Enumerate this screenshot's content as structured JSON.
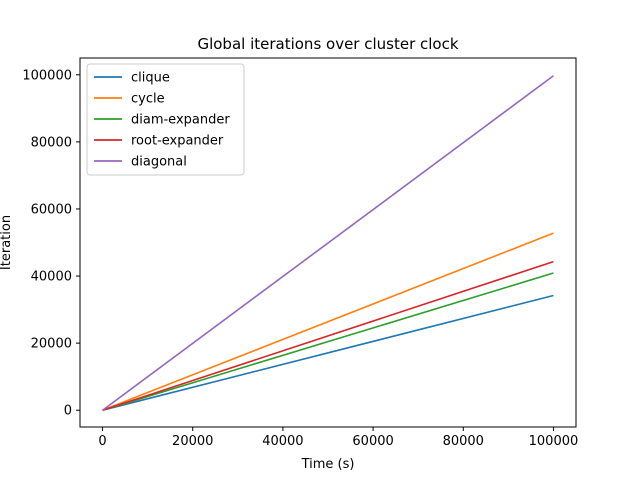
{
  "chart_data": {
    "type": "line",
    "title": "Global iterations over cluster clock",
    "xlabel": "Time (s)",
    "ylabel": "Iteration",
    "xlim": [
      -5000,
      105000
    ],
    "ylim": [
      -5000,
      105000
    ],
    "xticks": [
      0,
      20000,
      40000,
      60000,
      80000,
      100000
    ],
    "yticks": [
      0,
      20000,
      40000,
      60000,
      80000,
      100000
    ],
    "x": [
      0,
      100000
    ],
    "grid": false,
    "legend_position": "top-left",
    "series": [
      {
        "name": "clique",
        "color": "#1f77b4",
        "values": [
          0,
          34200
        ]
      },
      {
        "name": "cycle",
        "color": "#ff7f0e",
        "values": [
          0,
          52800
        ]
      },
      {
        "name": "diam-expander",
        "color": "#2ca02c",
        "values": [
          0,
          40900
        ]
      },
      {
        "name": "root-expander",
        "color": "#d62728",
        "values": [
          0,
          44300
        ]
      },
      {
        "name": "diagonal",
        "color": "#9467bd",
        "values": [
          0,
          99700
        ]
      }
    ]
  }
}
